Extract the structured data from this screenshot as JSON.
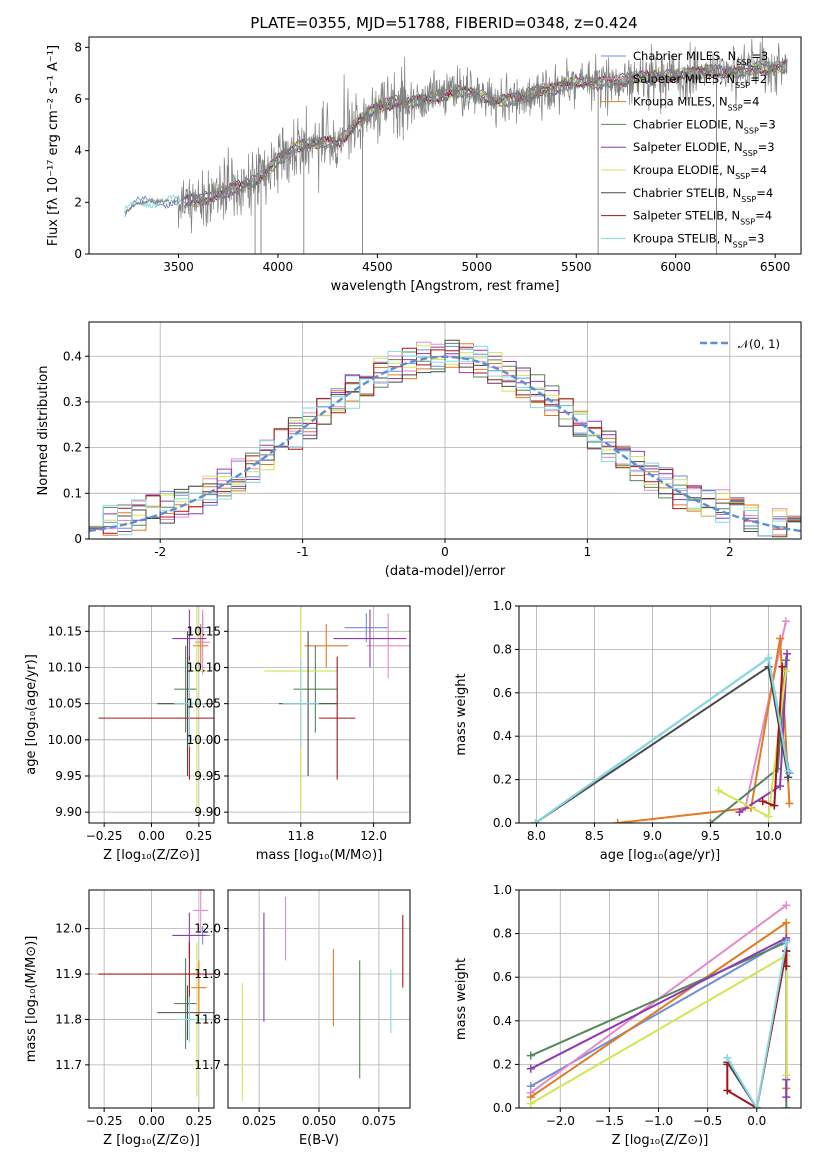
{
  "figure": {
    "title": "PLATE=0355, MJD=51788, FIBERID=0348, z=0.424"
  },
  "colors": {
    "Chabrier MILES": "#6f8fd6",
    "Salpeter MILES": "#e58ac9",
    "Kroupa MILES": "#e07b22",
    "Chabrier ELODIE": "#56875c",
    "Salpeter ELODIE": "#8e3ab5",
    "Kroupa ELODIE": "#d3e553",
    "Chabrier STELIB": "#4a4a4a",
    "Salpeter STELIB": "#a3151d",
    "Kroupa STELIB": "#86d9e2",
    "data": "#808080",
    "normal": "#5b8ed6"
  },
  "chart_data": [
    {
      "id": "spectrum",
      "type": "line",
      "title": "PLATE=0355, MJD=51788, FIBERID=0348, z=0.424",
      "xlabel": "wavelength [Angstrom, rest frame]",
      "ylabel": "Flux [fλ 10⁻¹⁷ erg cm⁻² s⁻¹ A⁻¹]",
      "xlim": [
        3050,
        6630
      ],
      "ylim": [
        0,
        8.4
      ],
      "xticks": [
        3500,
        4000,
        4500,
        5000,
        5500,
        6000,
        6500
      ],
      "yticks": [
        0,
        2,
        4,
        6,
        8
      ],
      "grid": false,
      "legend_position": "top-right",
      "legend": [
        "Chabrier MILES, N_SSP=3",
        "Salpeter MILES, N_SSP=2",
        "Kroupa MILES, N_SSP=4",
        "Chabrier ELODIE, N_SSP=3",
        "Salpeter ELODIE, N_SSP=3",
        "Kroupa ELODIE, N_SSP=4",
        "Chabrier STELIB, N_SSP=4",
        "Salpeter STELIB, N_SSP=4",
        "Kroupa STELIB, N_SSP=3"
      ],
      "continuum": {
        "x": [
          3230,
          3300,
          3400,
          3500,
          3600,
          3700,
          3800,
          3900,
          4000,
          4100,
          4200,
          4300,
          4400,
          4500,
          4600,
          4700,
          4800,
          4900,
          5000,
          5100,
          5200,
          5300,
          5400,
          5500,
          5600,
          5700,
          5800,
          5900,
          6000,
          6100,
          6200,
          6300,
          6400,
          6500,
          6560
        ],
        "y": [
          1.6,
          2.0,
          2.05,
          2.0,
          2.1,
          2.3,
          2.6,
          2.9,
          3.6,
          4.2,
          4.3,
          4.3,
          5.1,
          5.7,
          5.9,
          5.9,
          6.1,
          6.3,
          6.2,
          5.9,
          6.0,
          6.3,
          6.4,
          6.7,
          6.6,
          6.7,
          6.8,
          6.9,
          6.9,
          7.0,
          7.1,
          7.0,
          7.2,
          7.2,
          7.3
        ]
      },
      "models_start_A": [
        3230,
        3530,
        3530,
        3530,
        3530,
        3900,
        3530,
        3530,
        3230
      ]
    },
    {
      "id": "residuals",
      "type": "line",
      "xlabel": "(data-model)/error",
      "ylabel": "Normed distribution",
      "xlim": [
        -2.5,
        2.5
      ],
      "ylim": [
        0,
        0.475
      ],
      "xticks": [
        -2,
        -1,
        0,
        1,
        2
      ],
      "yticks": [
        0.0,
        0.1,
        0.2,
        0.3,
        0.4
      ],
      "grid": true,
      "legend_position": "top-right",
      "legend": [
        "𝒩(0, 1)"
      ]
    },
    {
      "id": "age-vs-Z",
      "type": "scatter",
      "xlabel": "Z [log₁₀(Z/Z⊙)]",
      "ylabel": "age  [log₁₀(age/yr)]",
      "xlim": [
        -0.33,
        0.33
      ],
      "ylim": [
        9.885,
        10.185
      ],
      "xticks": [
        -0.25,
        0.0,
        0.25
      ],
      "xticklabels": [
        "−0.25",
        "0.00",
        "0.25"
      ],
      "yticks": [
        9.9,
        9.95,
        10.0,
        10.05,
        10.1,
        10.15
      ],
      "yticklabels": [
        "9.90",
        "9.95",
        "10.00",
        "10.05",
        "10.10",
        "10.15"
      ],
      "grid": true,
      "points": [
        {
          "model": "Chabrier MILES",
          "x": 0.27,
          "xerr": 0.04,
          "y": 10.155,
          "yerr": 0.02
        },
        {
          "model": "Salpeter MILES",
          "x": 0.27,
          "xerr": 0.04,
          "y": 10.135,
          "yerr": 0.045
        },
        {
          "model": "Kroupa MILES",
          "x": 0.26,
          "xerr": 0.04,
          "y": 10.13,
          "yerr": 0.03
        },
        {
          "model": "Chabrier ELODIE",
          "x": 0.18,
          "xerr": 0.06,
          "y": 10.07,
          "yerr": 0.06
        },
        {
          "model": "Salpeter ELODIE",
          "x": 0.2,
          "xerr": 0.09,
          "y": 10.14,
          "yerr": 0.04
        },
        {
          "model": "Kroupa ELODIE",
          "x": 0.24,
          "xerr": 0.05,
          "y": 10.095,
          "yerr": 0.195
        },
        {
          "model": "Chabrier STELIB",
          "x": 0.19,
          "xerr": 0.16,
          "y": 10.05,
          "yerr": 0.1
        },
        {
          "model": "Salpeter STELIB",
          "x": 0.2,
          "xerr": 0.48,
          "y": 10.03,
          "yerr": 0.085
        },
        {
          "model": "Kroupa STELIB",
          "x": 0.2,
          "xerr": 0.08,
          "y": 10.05,
          "yerr": 0.06
        }
      ]
    },
    {
      "id": "age-vs-mass",
      "type": "scatter",
      "xlabel": "mass [log₁₀(M/M⊙)]",
      "xlim": [
        11.6,
        12.1
      ],
      "ylim": [
        9.885,
        10.185
      ],
      "xticks": [
        11.8,
        12.0
      ],
      "xticklabels": [
        "11.8",
        "12.0"
      ],
      "yticks": [
        9.9,
        9.95,
        10.0,
        10.05,
        10.1,
        10.15
      ],
      "yticklabels": [
        "9.90",
        "9.95",
        "10.00",
        "10.05",
        "10.10",
        "10.15"
      ],
      "grid": true,
      "points": [
        {
          "model": "Chabrier MILES",
          "x": 11.98,
          "xerr": 0.06,
          "y": 10.155,
          "yerr": 0.02
        },
        {
          "model": "Salpeter MILES",
          "x": 12.04,
          "xerr": 0.06,
          "y": 10.13,
          "yerr": 0.045
        },
        {
          "model": "Kroupa MILES",
          "x": 11.87,
          "xerr": 0.06,
          "y": 10.13,
          "yerr": 0.03
        },
        {
          "model": "Chabrier ELODIE",
          "x": 11.84,
          "xerr": 0.06,
          "y": 10.07,
          "yerr": 0.06
        },
        {
          "model": "Salpeter ELODIE",
          "x": 11.99,
          "xerr": 0.1,
          "y": 10.14,
          "yerr": 0.04
        },
        {
          "model": "Kroupa ELODIE",
          "x": 11.8,
          "xerr": 0.1,
          "y": 10.095,
          "yerr": 0.195
        },
        {
          "model": "Chabrier STELIB",
          "x": 11.82,
          "xerr": 0.08,
          "y": 10.05,
          "yerr": 0.1
        },
        {
          "model": "Salpeter STELIB",
          "x": 11.9,
          "xerr": 0.05,
          "y": 10.03,
          "yerr": 0.085
        },
        {
          "model": "Kroupa STELIB",
          "x": 11.8,
          "xerr": 0.05,
          "y": 10.05,
          "yerr": 0.06
        }
      ]
    },
    {
      "id": "weight-vs-age",
      "type": "line",
      "xlabel": "age  [log₁₀(age/yr)]",
      "ylabel": "mass weight",
      "xlim": [
        7.85,
        10.28
      ],
      "ylim": [
        0.0,
        1.0
      ],
      "xticks": [
        8.0,
        8.5,
        9.0,
        9.5,
        10.0
      ],
      "xticklabels": [
        "8.0",
        "8.5",
        "9.0",
        "9.5",
        "10.0"
      ],
      "yticks": [
        0.0,
        0.2,
        0.4,
        0.6,
        0.8,
        1.0
      ],
      "yticklabels": [
        "0.0",
        "0.2",
        "0.4",
        "0.6",
        "0.8",
        "1.0"
      ],
      "grid": true,
      "series": [
        {
          "model": "Chabrier MILES",
          "x": [
            7.99,
            10.0,
            10.18
          ],
          "y": [
            0.0,
            0.76,
            0.23
          ]
        },
        {
          "model": "Salpeter MILES",
          "x": [
            9.8,
            10.15
          ],
          "y": [
            0.07,
            0.93
          ]
        },
        {
          "model": "Kroupa MILES",
          "x": [
            8.7,
            9.85,
            10.1,
            10.18
          ],
          "y": [
            0.0,
            0.07,
            0.85,
            0.09
          ]
        },
        {
          "model": "Chabrier ELODIE",
          "x": [
            9.5,
            10.08,
            10.15
          ],
          "y": [
            0.0,
            0.25,
            0.75
          ]
        },
        {
          "model": "Salpeter ELODIE",
          "x": [
            9.75,
            10.1,
            10.16
          ],
          "y": [
            0.05,
            0.17,
            0.78
          ]
        },
        {
          "model": "Kroupa ELODIE",
          "x": [
            9.57,
            10.0,
            10.15
          ],
          "y": [
            0.15,
            0.03,
            0.7
          ]
        },
        {
          "model": "Chabrier STELIB",
          "x": [
            7.99,
            10.0,
            10.17
          ],
          "y": [
            0.0,
            0.72,
            0.21
          ]
        },
        {
          "model": "Salpeter STELIB",
          "x": [
            9.95,
            10.05,
            10.12
          ],
          "y": [
            0.1,
            0.08,
            0.72
          ]
        },
        {
          "model": "Kroupa STELIB",
          "x": [
            7.99,
            10.0,
            10.17
          ],
          "y": [
            0.0,
            0.76,
            0.24
          ]
        }
      ]
    },
    {
      "id": "mass-vs-Z",
      "type": "scatter",
      "xlabel": "Z [log₁₀(Z/Z⊙)]",
      "ylabel": "mass [log₁₀(M/M⊙)]",
      "xlim": [
        -0.33,
        0.33
      ],
      "ylim": [
        11.605,
        12.085
      ],
      "xticks": [
        -0.25,
        0.0,
        0.25
      ],
      "xticklabels": [
        "−0.25",
        "0.00",
        "0.25"
      ],
      "yticks": [
        11.7,
        11.8,
        11.9,
        12.0
      ],
      "yticklabels": [
        "11.7",
        "11.8",
        "11.9",
        "12.0"
      ],
      "grid": true,
      "points": [
        {
          "model": "Chabrier MILES",
          "x": 0.27,
          "xerr": 0.04,
          "y": 11.985,
          "yerr": 0.02
        },
        {
          "model": "Salpeter MILES",
          "x": 0.26,
          "xerr": 0.04,
          "y": 12.04,
          "yerr": 0.05
        },
        {
          "model": "Kroupa MILES",
          "x": 0.25,
          "xerr": 0.04,
          "y": 11.87,
          "yerr": 0.06
        },
        {
          "model": "Chabrier ELODIE",
          "x": 0.18,
          "xerr": 0.06,
          "y": 11.835,
          "yerr": 0.1
        },
        {
          "model": "Salpeter ELODIE",
          "x": 0.2,
          "xerr": 0.09,
          "y": 11.985,
          "yerr": 0.05
        },
        {
          "model": "Kroupa ELODIE",
          "x": 0.24,
          "xerr": 0.05,
          "y": 11.8,
          "yerr": 0.17
        },
        {
          "model": "Chabrier STELIB",
          "x": 0.19,
          "xerr": 0.16,
          "y": 11.815,
          "yerr": 0.06
        },
        {
          "model": "Salpeter STELIB",
          "x": 0.2,
          "xerr": 0.48,
          "y": 11.9,
          "yerr": 0.07
        },
        {
          "model": "Kroupa STELIB",
          "x": 0.2,
          "xerr": 0.08,
          "y": 11.8,
          "yerr": 0.05
        }
      ]
    },
    {
      "id": "mass-vs-EBV",
      "type": "scatter",
      "xlabel": "E(B-V)",
      "xlim": [
        0.012,
        0.088
      ],
      "ylim": [
        11.605,
        12.085
      ],
      "xticks": [
        0.025,
        0.05,
        0.075
      ],
      "xticklabels": [
        "0.025",
        "0.050",
        "0.075"
      ],
      "yticks": [
        11.7,
        11.8,
        11.9,
        12.0
      ],
      "yticklabels": [
        "11.7",
        "11.8",
        "11.9",
        "12.0"
      ],
      "grid": true,
      "points": [
        {
          "model": "Kroupa ELODIE",
          "x": 0.018,
          "y": 11.75,
          "yerr": 0.13
        },
        {
          "model": "Salpeter ELODIE",
          "x": 0.027,
          "y": 11.915,
          "yerr": 0.12
        },
        {
          "model": "Salpeter MILES",
          "x": 0.036,
          "y": 12.0,
          "yerr": 0.07
        },
        {
          "model": "Kroupa MILES",
          "x": 0.056,
          "y": 11.87,
          "yerr": 0.085
        },
        {
          "model": "Chabrier ELODIE",
          "x": 0.067,
          "y": 11.8,
          "yerr": 0.13
        },
        {
          "model": "Kroupa STELIB",
          "x": 0.08,
          "y": 11.84,
          "yerr": 0.07
        },
        {
          "model": "Salpeter STELIB",
          "x": 0.085,
          "y": 11.95,
          "yerr": 0.08
        }
      ]
    },
    {
      "id": "weight-vs-Z",
      "type": "line",
      "xlabel": "Z [log₁₀(Z/Z⊙)]",
      "ylabel": "mass weight",
      "xlim": [
        -2.42,
        0.45
      ],
      "ylim": [
        0.0,
        1.0
      ],
      "xticks": [
        -2.0,
        -1.5,
        -1.0,
        -0.5,
        0.0
      ],
      "xticklabels": [
        "−2.0",
        "−1.5",
        "−1.0",
        "−0.5",
        "0.0"
      ],
      "yticks": [
        0.0,
        0.2,
        0.4,
        0.6,
        0.8,
        1.0
      ],
      "yticklabels": [
        "0.0",
        "0.2",
        "0.4",
        "0.6",
        "0.8",
        "1.0"
      ],
      "grid": true,
      "series": [
        {
          "model": "Chabrier MILES",
          "x": [
            -2.3,
            0.3
          ],
          "y": [
            0.1,
            0.77
          ]
        },
        {
          "model": "Salpeter MILES",
          "x": [
            -2.3,
            0.3
          ],
          "y": [
            0.07,
            0.93
          ]
        },
        {
          "model": "Kroupa MILES",
          "x": [
            -2.3,
            0.3,
            0.3
          ],
          "y": [
            0.05,
            0.85,
            0.09
          ]
        },
        {
          "model": "Chabrier ELODIE",
          "x": [
            -2.3,
            0.3,
            0.3
          ],
          "y": [
            0.24,
            0.76,
            0.0
          ]
        },
        {
          "model": "Salpeter ELODIE",
          "x": [
            -2.3,
            0.3,
            0.3,
            0.3
          ],
          "y": [
            0.18,
            0.78,
            0.13,
            0.05
          ]
        },
        {
          "model": "Kroupa ELODIE",
          "x": [
            -2.3,
            0.3,
            0.3
          ],
          "y": [
            0.02,
            0.7,
            0.15
          ]
        },
        {
          "model": "Chabrier STELIB",
          "x": [
            -0.3,
            0.0,
            0.3
          ],
          "y": [
            0.21,
            0.0,
            0.72
          ]
        },
        {
          "model": "Salpeter STELIB",
          "x": [
            -0.3,
            -0.3,
            0.0,
            0.3,
            0.3
          ],
          "y": [
            0.2,
            0.08,
            0.0,
            0.72,
            0.65
          ]
        },
        {
          "model": "Kroupa STELIB",
          "x": [
            -0.3,
            0.0,
            0.3
          ],
          "y": [
            0.23,
            0.0,
            0.76
          ]
        }
      ]
    }
  ]
}
